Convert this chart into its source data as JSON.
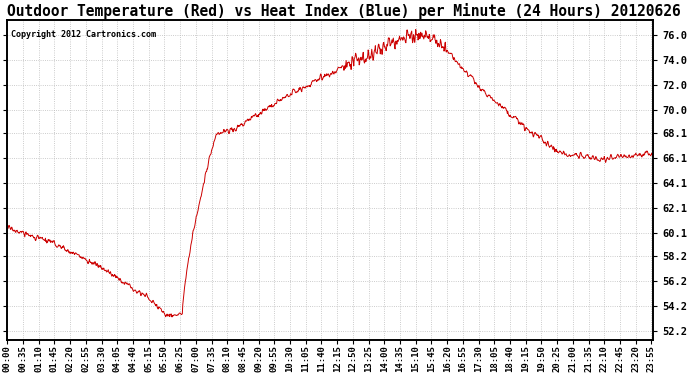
{
  "title": "Outdoor Temperature (Red) vs Heat Index (Blue) per Minute (24 Hours) 20120626",
  "copyright": "Copyright 2012 Cartronics.com",
  "yticks": [
    52.2,
    54.2,
    56.2,
    58.2,
    60.1,
    62.1,
    64.1,
    66.1,
    68.1,
    70.0,
    72.0,
    74.0,
    76.0
  ],
  "ylim": [
    51.5,
    77.2
  ],
  "line_color": "#cc0000",
  "bg_color": "#ffffff",
  "grid_color": "#bbbbbb",
  "title_fontsize": 10.5,
  "tick_fontsize": 7.5,
  "xlabel_fontsize": 6.5,
  "tick_interval_minutes": 35
}
